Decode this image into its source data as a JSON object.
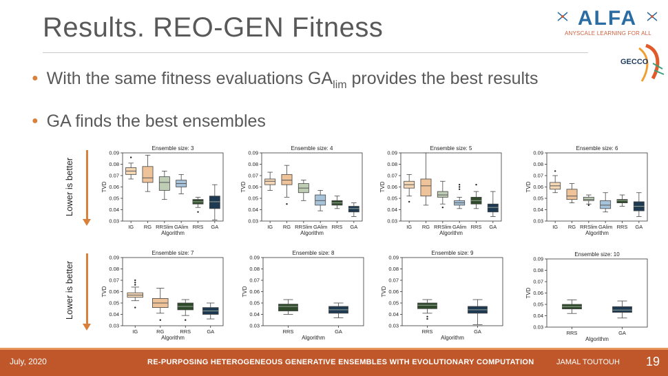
{
  "slide": {
    "title": "Results. REO-GEN Fitness",
    "bullets": [
      {
        "text_before": "With the same fitness evaluations GA",
        "sub": "lim",
        "text_after": " provides the best results"
      },
      {
        "text": "GA finds the best ensembles"
      }
    ],
    "side_label": "Lower is better",
    "logo": {
      "text": "ALFA",
      "subtitle": "ANYSCALE LEARNING FOR ALL"
    },
    "conference_logo": "GECCO",
    "footer": {
      "date": "July, 2020",
      "title": "RE-PURPOSING HETEROGENEOUS GENERATIVE ENSEMBLES WITH EVOLUTIONARY COMPUTATION",
      "author": "JAMAL TOUTOUH",
      "page": "19"
    }
  },
  "colors": {
    "IG": "#f5d7b6",
    "RG": "#efc39a",
    "RRSlim": "#bfcdb4",
    "GAlim": "#a6c3da",
    "RRS": "#2f4a2b",
    "GA": "#1e3a52",
    "accent": "#d7813c",
    "footer": "#c0572a"
  },
  "chart_data": [
    {
      "type": "box",
      "title": "Ensemble size: 3",
      "xlabel": "Algorithm",
      "ylabel": "TVD",
      "ylim": [
        0.03,
        0.09
      ],
      "yticks": [
        "0.03",
        "0.04",
        "0.05",
        "0.06",
        "0.07",
        "0.08",
        "0.09"
      ],
      "categories": [
        "IG",
        "RG",
        "RRSlim",
        "GAlim",
        "RRS",
        "GA"
      ],
      "boxes": [
        {
          "label": "IG",
          "whislo": 0.067,
          "q1": 0.071,
          "med": 0.074,
          "q3": 0.077,
          "whishi": 0.081,
          "fliers": [
            0.086
          ]
        },
        {
          "label": "RG",
          "whislo": 0.056,
          "q1": 0.064,
          "med": 0.068,
          "q3": 0.078,
          "whishi": 0.088,
          "fliers": []
        },
        {
          "label": "RRSlim",
          "whislo": 0.049,
          "q1": 0.057,
          "med": 0.064,
          "q3": 0.069,
          "whishi": 0.074,
          "fliers": []
        },
        {
          "label": "GAlim",
          "whislo": 0.054,
          "q1": 0.06,
          "med": 0.063,
          "q3": 0.066,
          "whishi": 0.071,
          "fliers": []
        },
        {
          "label": "RRS",
          "whislo": 0.042,
          "q1": 0.045,
          "med": 0.047,
          "q3": 0.049,
          "whishi": 0.051,
          "fliers": [
            0.038
          ]
        },
        {
          "label": "GA",
          "whislo": 0.031,
          "q1": 0.041,
          "med": 0.047,
          "q3": 0.052,
          "whishi": 0.062,
          "fliers": []
        }
      ]
    },
    {
      "type": "box",
      "title": "Ensemble size: 4",
      "xlabel": "Algorithm",
      "ylabel": "TVD",
      "ylim": [
        0.03,
        0.09
      ],
      "yticks": [
        "0.03",
        "0.04",
        "0.05",
        "0.06",
        "0.07",
        "0.08",
        "0.09"
      ],
      "categories": [
        "IG",
        "RG",
        "RRSlim",
        "GAlim",
        "RRS",
        "GA"
      ],
      "boxes": [
        {
          "label": "IG",
          "whislo": 0.057,
          "q1": 0.062,
          "med": 0.065,
          "q3": 0.067,
          "whishi": 0.073,
          "fliers": []
        },
        {
          "label": "RG",
          "whislo": 0.051,
          "q1": 0.062,
          "med": 0.066,
          "q3": 0.071,
          "whishi": 0.079,
          "fliers": [
            0.045
          ]
        },
        {
          "label": "RRSlim",
          "whislo": 0.048,
          "q1": 0.055,
          "med": 0.059,
          "q3": 0.063,
          "whishi": 0.066,
          "fliers": []
        },
        {
          "label": "GAlim",
          "whislo": 0.039,
          "q1": 0.044,
          "med": 0.048,
          "q3": 0.053,
          "whishi": 0.057,
          "fliers": []
        },
        {
          "label": "RRS",
          "whislo": 0.041,
          "q1": 0.044,
          "med": 0.046,
          "q3": 0.048,
          "whishi": 0.052,
          "fliers": []
        },
        {
          "label": "GA",
          "whislo": 0.034,
          "q1": 0.038,
          "med": 0.041,
          "q3": 0.043,
          "whishi": 0.046,
          "fliers": []
        }
      ]
    },
    {
      "type": "box",
      "title": "Ensemble size: 5",
      "xlabel": "Algorithm",
      "ylabel": "TVD",
      "ylim": [
        0.03,
        0.09
      ],
      "yticks": [
        "0.03",
        "0.04",
        "0.05",
        "0.06",
        "0.07",
        "0.08",
        "0.09"
      ],
      "categories": [
        "IG",
        "RG",
        "RRSlim",
        "GAlim",
        "RRS",
        "GA"
      ],
      "boxes": [
        {
          "label": "IG",
          "whislo": 0.052,
          "q1": 0.059,
          "med": 0.062,
          "q3": 0.065,
          "whishi": 0.071,
          "fliers": [
            0.047
          ]
        },
        {
          "label": "RG",
          "whislo": 0.044,
          "q1": 0.052,
          "med": 0.061,
          "q3": 0.067,
          "whishi": 0.09,
          "fliers": []
        },
        {
          "label": "RRSlim",
          "whislo": 0.045,
          "q1": 0.051,
          "med": 0.053,
          "q3": 0.056,
          "whishi": 0.065,
          "fliers": [
            0.042
          ]
        },
        {
          "label": "GAlim",
          "whislo": 0.041,
          "q1": 0.044,
          "med": 0.046,
          "q3": 0.048,
          "whishi": 0.051,
          "fliers": [
            0.058,
            0.06,
            0.062
          ]
        },
        {
          "label": "RRS",
          "whislo": 0.041,
          "q1": 0.045,
          "med": 0.048,
          "q3": 0.051,
          "whishi": 0.056,
          "fliers": [
            0.062
          ]
        },
        {
          "label": "GA",
          "whislo": 0.034,
          "q1": 0.038,
          "med": 0.042,
          "q3": 0.045,
          "whishi": 0.056,
          "fliers": []
        }
      ]
    },
    {
      "type": "box",
      "title": "Ensemble size: 6",
      "xlabel": "Algorithm",
      "ylabel": "TVD",
      "ylim": [
        0.03,
        0.09
      ],
      "yticks": [
        "0.03",
        "0.04",
        "0.05",
        "0.06",
        "0.07",
        "0.08",
        "0.09"
      ],
      "categories": [
        "IG",
        "RG",
        "RRSlim",
        "GAlim",
        "RRS",
        "GA"
      ],
      "boxes": [
        {
          "label": "IG",
          "whislo": 0.055,
          "q1": 0.058,
          "med": 0.061,
          "q3": 0.064,
          "whishi": 0.07,
          "fliers": [
            0.074
          ]
        },
        {
          "label": "RG",
          "whislo": 0.046,
          "q1": 0.049,
          "med": 0.052,
          "q3": 0.058,
          "whishi": 0.063,
          "fliers": []
        },
        {
          "label": "RRSlim",
          "whislo": 0.045,
          "q1": 0.048,
          "med": 0.049,
          "q3": 0.051,
          "whishi": 0.053,
          "fliers": [
            0.044
          ]
        },
        {
          "label": "GAlim",
          "whislo": 0.038,
          "q1": 0.041,
          "med": 0.044,
          "q3": 0.048,
          "whishi": 0.055,
          "fliers": []
        },
        {
          "label": "RRS",
          "whislo": 0.043,
          "q1": 0.046,
          "med": 0.048,
          "q3": 0.049,
          "whishi": 0.053,
          "fliers": []
        },
        {
          "label": "GA",
          "whislo": 0.034,
          "q1": 0.039,
          "med": 0.043,
          "q3": 0.047,
          "whishi": 0.055,
          "fliers": []
        }
      ]
    },
    {
      "type": "box",
      "title": "Ensemble size: 7",
      "xlabel": "Algorithm",
      "ylabel": "TVD",
      "ylim": [
        0.03,
        0.09
      ],
      "yticks": [
        "0.03",
        "0.04",
        "0.05",
        "0.06",
        "0.07",
        "0.08",
        "0.09"
      ],
      "categories": [
        "IG",
        "RG",
        "RRS",
        "GA"
      ],
      "boxes": [
        {
          "label": "IG",
          "whislo": 0.052,
          "q1": 0.055,
          "med": 0.057,
          "q3": 0.059,
          "whishi": 0.064,
          "fliers": [
            0.046,
            0.066,
            0.068,
            0.07
          ]
        },
        {
          "label": "RG",
          "whislo": 0.041,
          "q1": 0.046,
          "med": 0.05,
          "q3": 0.054,
          "whishi": 0.063,
          "fliers": [
            0.035
          ]
        },
        {
          "label": "RRS",
          "whislo": 0.039,
          "q1": 0.044,
          "med": 0.047,
          "q3": 0.05,
          "whishi": 0.053,
          "fliers": [
            0.035
          ]
        },
        {
          "label": "GA",
          "whislo": 0.036,
          "q1": 0.04,
          "med": 0.043,
          "q3": 0.046,
          "whishi": 0.05,
          "fliers": []
        }
      ]
    },
    {
      "type": "box",
      "title": "Ensemble size: 8",
      "xlabel": "Algorithm",
      "ylabel": "TVD",
      "ylim": [
        0.03,
        0.09
      ],
      "yticks": [
        "0.03",
        "0.04",
        "0.05",
        "0.06",
        "0.07",
        "0.08",
        "0.09"
      ],
      "categories": [
        "RRS",
        "GA"
      ],
      "boxes": [
        {
          "label": "RRS",
          "whislo": 0.04,
          "q1": 0.043,
          "med": 0.047,
          "q3": 0.049,
          "whishi": 0.053,
          "fliers": []
        },
        {
          "label": "GA",
          "whislo": 0.037,
          "q1": 0.041,
          "med": 0.044,
          "q3": 0.047,
          "whishi": 0.05,
          "fliers": []
        }
      ]
    },
    {
      "type": "box",
      "title": "Ensemble size: 9",
      "xlabel": "Algorithm",
      "ylabel": "TVD",
      "ylim": [
        0.03,
        0.09
      ],
      "yticks": [
        "0.03",
        "0.04",
        "0.05",
        "0.06",
        "0.07",
        "0.08",
        "0.09"
      ],
      "categories": [
        "RRS",
        "GA"
      ],
      "boxes": [
        {
          "label": "RRS",
          "whislo": 0.041,
          "q1": 0.045,
          "med": 0.048,
          "q3": 0.05,
          "whishi": 0.053,
          "fliers": [
            0.036,
            0.038
          ]
        },
        {
          "label": "GA",
          "whislo": 0.031,
          "q1": 0.041,
          "med": 0.044,
          "q3": 0.047,
          "whishi": 0.053,
          "fliers": []
        }
      ]
    },
    {
      "type": "box",
      "title": "Ensemble size: 10",
      "xlabel": "Algorithm",
      "ylabel": "TVD",
      "ylim": [
        0.03,
        0.09
      ],
      "yticks": [
        "0.03",
        "0.04",
        "0.05",
        "0.06",
        "0.07",
        "0.08",
        "0.09"
      ],
      "categories": [
        "RRS",
        "GA"
      ],
      "boxes": [
        {
          "label": "RRS",
          "whislo": 0.042,
          "q1": 0.046,
          "med": 0.048,
          "q3": 0.05,
          "whishi": 0.054,
          "fliers": []
        },
        {
          "label": "GA",
          "whislo": 0.038,
          "q1": 0.043,
          "med": 0.045,
          "q3": 0.048,
          "whishi": 0.053,
          "fliers": []
        }
      ]
    }
  ]
}
